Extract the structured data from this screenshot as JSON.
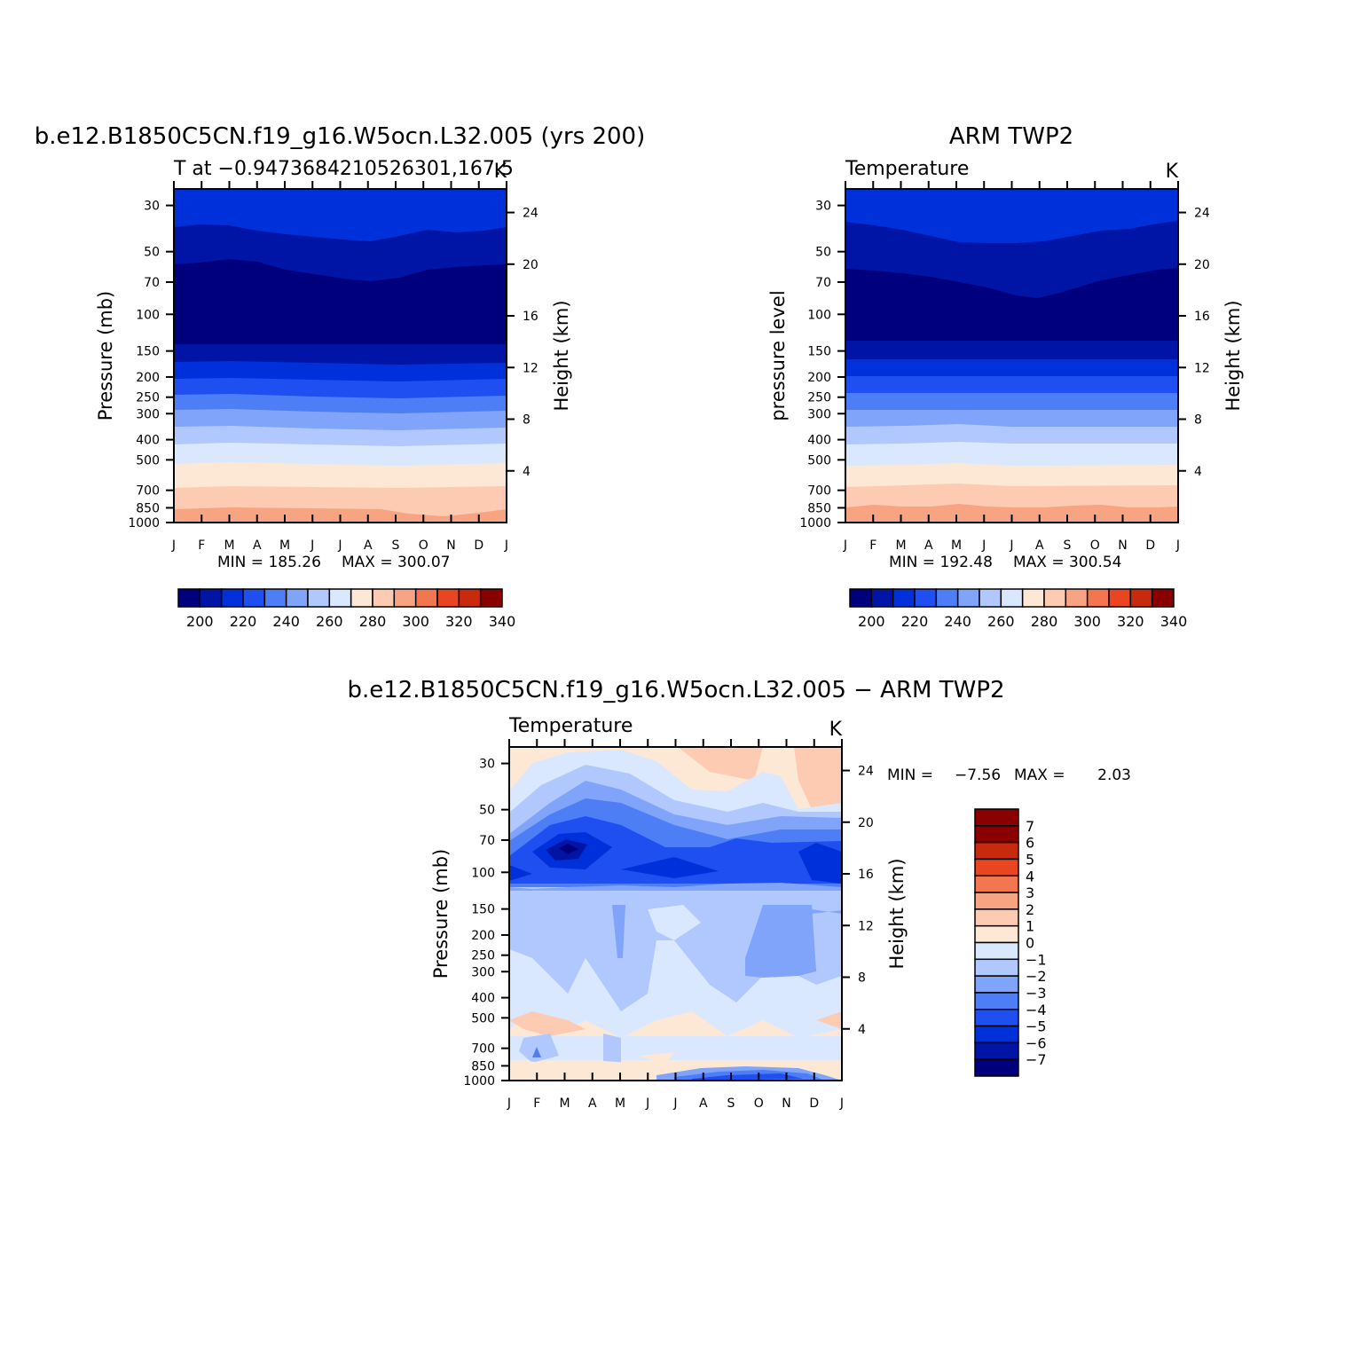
{
  "colors": {
    "abs_palette": [
      "#00007f",
      "#0014a5",
      "#0030d9",
      "#1f4ff0",
      "#4d7ef5",
      "#80a4fa",
      "#b0c8fd",
      "#d9e8fe",
      "#fde8d6",
      "#fdcab2",
      "#f8a382",
      "#f27650",
      "#e84520",
      "#c72a0c",
      "#8a0000"
    ],
    "diff_palette": [
      "#00007f",
      "#0014a5",
      "#0030d9",
      "#1f4ff0",
      "#4d7ef5",
      "#80a4fa",
      "#b0c8fd",
      "#d9e8fe",
      "#fde8d6",
      "#fdcab2",
      "#f8a382",
      "#f27650",
      "#e84520",
      "#c72a0c",
      "#8a0000"
    ]
  },
  "chart_data": [
    {
      "id": "model",
      "type": "heatmap",
      "title": "b.e12.B1850C5CN.f19_g16.W5ocn.L32.005 (yrs 200)",
      "subtitle_left": "T at −0.9473684210526301,167.5",
      "subtitle_right": "K",
      "ylabel": "Pressure (mb)",
      "ylabel_right": "Height (km)",
      "x_ticks": [
        "J",
        "F",
        "M",
        "A",
        "M",
        "J",
        "J",
        "A",
        "S",
        "O",
        "N",
        "D",
        "J"
      ],
      "y_ticks": [
        "30",
        "50",
        "70",
        "100",
        "150",
        "200",
        "250",
        "300",
        "400",
        "500",
        "700",
        "850",
        "1000"
      ],
      "y_right_ticks": [
        "24",
        "20",
        "16",
        "12",
        "8",
        "4"
      ],
      "min_text": "MIN = 185.26",
      "max_text": "MAX = 300.07",
      "colorbar_ticks": [
        "200",
        "220",
        "240",
        "260",
        "280",
        "300",
        "320",
        "340"
      ]
    },
    {
      "id": "obs",
      "type": "heatmap",
      "title": "ARM TWP2",
      "subtitle_left": "Temperature",
      "subtitle_right": "K",
      "ylabel": "pressure level",
      "ylabel_right": "Height (km)",
      "x_ticks": [
        "J",
        "F",
        "M",
        "A",
        "M",
        "J",
        "J",
        "A",
        "S",
        "O",
        "N",
        "D",
        "J"
      ],
      "y_ticks": [
        "30",
        "50",
        "70",
        "100",
        "150",
        "200",
        "250",
        "300",
        "400",
        "500",
        "700",
        "850",
        "1000"
      ],
      "y_right_ticks": [
        "24",
        "20",
        "16",
        "12",
        "8",
        "4"
      ],
      "min_text": "MIN = 192.48",
      "max_text": "MAX = 300.54",
      "colorbar_ticks": [
        "200",
        "220",
        "240",
        "260",
        "280",
        "300",
        "320",
        "340"
      ]
    },
    {
      "id": "diff",
      "type": "heatmap",
      "title": "b.e12.B1850C5CN.f19_g16.W5ocn.L32.005 − ARM TWP2",
      "subtitle_left": "Temperature",
      "subtitle_right": "K",
      "ylabel": "Pressure (mb)",
      "ylabel_right": "Height (km)",
      "x_ticks": [
        "J",
        "F",
        "M",
        "A",
        "M",
        "J",
        "J",
        "A",
        "S",
        "O",
        "N",
        "D",
        "J"
      ],
      "y_ticks": [
        "30",
        "50",
        "70",
        "100",
        "150",
        "200",
        "250",
        "300",
        "400",
        "500",
        "700",
        "850",
        "1000"
      ],
      "y_right_ticks": [
        "24",
        "20",
        "16",
        "12",
        "8",
        "4"
      ],
      "min_label": "MIN =",
      "min_value": "−7.56",
      "max_label": "MAX =",
      "max_value": "2.03",
      "colorbar_ticks": [
        "7",
        "6",
        "5",
        "4",
        "3",
        "2",
        "1",
        "0",
        "−1",
        "−2",
        "−3",
        "−4",
        "−5",
        "−6",
        "−7"
      ]
    }
  ]
}
